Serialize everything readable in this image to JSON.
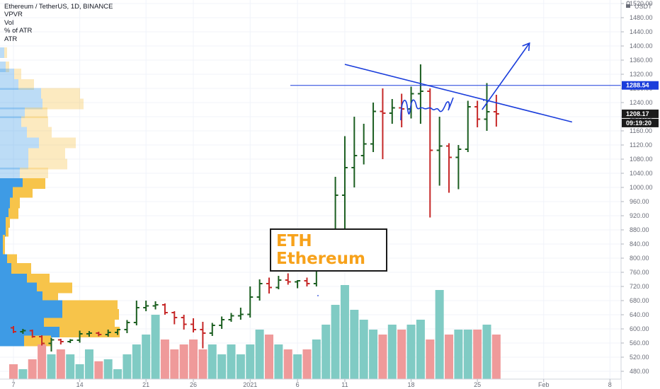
{
  "legend": {
    "title": "Ethereum / TetherUS, 1D, BINANCE",
    "indicators": [
      "VPVR",
      "Vol",
      "% of ATR",
      "ATR"
    ]
  },
  "annotation": {
    "line1": "ETH",
    "line2": "Ethereum",
    "color": "#f7a21b"
  },
  "price_tags": {
    "horizontal_level": "1288.54",
    "last_price": "1208.17",
    "countdown": "09:19:20"
  },
  "colors": {
    "up": "#1b5e20",
    "down": "#c62828",
    "vol_up": "#80cbc4",
    "vol_down": "#ef9a9a",
    "vp_blue": "#3e9be5",
    "vp_yellow": "#f7c44a",
    "drawing": "#1a3ddb"
  },
  "chart_data": {
    "type": "ohlc",
    "symbol": "Ethereum / TetherUS",
    "interval": "1D",
    "exchange": "BINANCE",
    "y_axis": {
      "unit": "USDT",
      "range": [
        460,
        1540
      ],
      "ticks": [
        480,
        520,
        560,
        600,
        640,
        680,
        720,
        760,
        800,
        840,
        880,
        920,
        960,
        1000,
        1040,
        1080,
        1120,
        1160,
        1200,
        1240,
        1280,
        1320,
        1360,
        1400,
        1440,
        1480,
        1520
      ]
    },
    "x_axis": {
      "tick_labels": [
        {
          "label": "7",
          "day": 0
        },
        {
          "label": "14",
          "day": 7
        },
        {
          "label": "21",
          "day": 14
        },
        {
          "label": "26",
          "day": 19
        },
        {
          "label": "2021",
          "day": 25
        },
        {
          "label": "6",
          "day": 30
        },
        {
          "label": "11",
          "day": 35
        },
        {
          "label": "18",
          "day": 42
        },
        {
          "label": "25",
          "day": 49
        },
        {
          "label": "Feb",
          "day": 56
        },
        {
          "label": "8",
          "day": 63
        }
      ]
    },
    "bars": [
      {
        "o": 603,
        "h": 608,
        "l": 588,
        "c": 592
      },
      {
        "o": 592,
        "h": 600,
        "l": 586,
        "c": 595
      },
      {
        "o": 595,
        "h": 598,
        "l": 575,
        "c": 578
      },
      {
        "o": 578,
        "h": 582,
        "l": 553,
        "c": 559
      },
      {
        "o": 559,
        "h": 575,
        "l": 536,
        "c": 569
      },
      {
        "o": 569,
        "h": 572,
        "l": 556,
        "c": 564
      },
      {
        "o": 564,
        "h": 571,
        "l": 560,
        "c": 568
      },
      {
        "o": 568,
        "h": 595,
        "l": 561,
        "c": 586
      },
      {
        "o": 586,
        "h": 594,
        "l": 578,
        "c": 588
      },
      {
        "o": 588,
        "h": 592,
        "l": 579,
        "c": 584
      },
      {
        "o": 584,
        "h": 598,
        "l": 578,
        "c": 590
      },
      {
        "o": 590,
        "h": 600,
        "l": 583,
        "c": 598
      },
      {
        "o": 598,
        "h": 625,
        "l": 588,
        "c": 618
      },
      {
        "o": 618,
        "h": 680,
        "l": 610,
        "c": 660
      },
      {
        "o": 660,
        "h": 680,
        "l": 650,
        "c": 665
      },
      {
        "o": 665,
        "h": 678,
        "l": 655,
        "c": 668
      },
      {
        "o": 668,
        "h": 672,
        "l": 640,
        "c": 646
      },
      {
        "o": 646,
        "h": 650,
        "l": 613,
        "c": 632
      },
      {
        "o": 632,
        "h": 640,
        "l": 598,
        "c": 613
      },
      {
        "o": 613,
        "h": 630,
        "l": 590,
        "c": 598
      },
      {
        "o": 598,
        "h": 620,
        "l": 545,
        "c": 588
      },
      {
        "o": 588,
        "h": 617,
        "l": 580,
        "c": 610
      },
      {
        "o": 610,
        "h": 635,
        "l": 600,
        "c": 626
      },
      {
        "o": 626,
        "h": 645,
        "l": 620,
        "c": 637
      },
      {
        "o": 637,
        "h": 660,
        "l": 626,
        "c": 641
      },
      {
        "o": 641,
        "h": 720,
        "l": 632,
        "c": 690
      },
      {
        "o": 690,
        "h": 740,
        "l": 680,
        "c": 728
      },
      {
        "o": 728,
        "h": 745,
        "l": 700,
        "c": 717
      },
      {
        "o": 717,
        "h": 750,
        "l": 712,
        "c": 738
      },
      {
        "o": 738,
        "h": 757,
        "l": 725,
        "c": 733
      },
      {
        "o": 733,
        "h": 738,
        "l": 715,
        "c": 736
      },
      {
        "o": 736,
        "h": 745,
        "l": 720,
        "c": 728
      },
      {
        "o": 728,
        "h": 775,
        "l": 720,
        "c": 768
      },
      {
        "o": 768,
        "h": 883,
        "l": 765,
        "c": 845
      },
      {
        "o": 845,
        "h": 1030,
        "l": 840,
        "c": 978
      },
      {
        "o": 978,
        "h": 1145,
        "l": 860,
        "c": 1056
      },
      {
        "o": 1056,
        "h": 1200,
        "l": 1000,
        "c": 1090
      },
      {
        "o": 1090,
        "h": 1180,
        "l": 1065,
        "c": 1123
      },
      {
        "o": 1123,
        "h": 1240,
        "l": 1100,
        "c": 1215
      },
      {
        "o": 1215,
        "h": 1280,
        "l": 1080,
        "c": 1210
      },
      {
        "o": 1210,
        "h": 1250,
        "l": 1180,
        "c": 1225
      },
      {
        "o": 1225,
        "h": 1265,
        "l": 1170,
        "c": 1222
      },
      {
        "o": 1222,
        "h": 1285,
        "l": 1195,
        "c": 1265
      },
      {
        "o": 1265,
        "h": 1348,
        "l": 1180,
        "c": 1272
      },
      {
        "o": 1272,
        "h": 1280,
        "l": 915,
        "c": 1105
      },
      {
        "o": 1105,
        "h": 1200,
        "l": 1005,
        "c": 1117
      },
      {
        "o": 1117,
        "h": 1125,
        "l": 985,
        "c": 1085
      },
      {
        "o": 1085,
        "h": 1120,
        "l": 995,
        "c": 1108
      },
      {
        "o": 1108,
        "h": 1245,
        "l": 1100,
        "c": 1228
      },
      {
        "o": 1228,
        "h": 1245,
        "l": 1170,
        "c": 1193
      },
      {
        "o": 1193,
        "h": 1295,
        "l": 1160,
        "c": 1214
      },
      {
        "o": 1214,
        "h": 1262,
        "l": 1172,
        "c": 1208
      }
    ],
    "volume": [
      0.15,
      0.1,
      0.2,
      0.35,
      0.25,
      0.3,
      0.25,
      0.15,
      0.3,
      0.18,
      0.2,
      0.1,
      0.25,
      0.35,
      0.45,
      0.65,
      0.4,
      0.3,
      0.35,
      0.4,
      0.3,
      0.35,
      0.25,
      0.35,
      0.25,
      0.35,
      0.5,
      0.45,
      0.35,
      0.3,
      0.25,
      0.3,
      0.4,
      0.55,
      0.75,
      0.95,
      0.7,
      0.6,
      0.5,
      0.45,
      0.55,
      0.5,
      0.55,
      0.6,
      0.4,
      0.9,
      0.45,
      0.5,
      0.5,
      0.5,
      0.55,
      0.45
    ],
    "volume_profile": [
      {
        "price": 1380,
        "up": 6,
        "down": 4
      },
      {
        "price": 1340,
        "up": 8,
        "down": 5
      },
      {
        "price": 1320,
        "up": 20,
        "down": 10
      },
      {
        "price": 1290,
        "up": 26,
        "down": 22
      },
      {
        "price": 1265,
        "up": 58,
        "down": 55
      },
      {
        "price": 1235,
        "up": 60,
        "down": 58
      },
      {
        "price": 1210,
        "up": 35,
        "down": 32
      },
      {
        "price": 1185,
        "up": 30,
        "down": 38
      },
      {
        "price": 1155,
        "up": 38,
        "down": 35
      },
      {
        "price": 1125,
        "up": 55,
        "down": 52
      },
      {
        "price": 1095,
        "up": 40,
        "down": 52
      },
      {
        "price": 1065,
        "up": 40,
        "down": 55
      },
      {
        "price": 1040,
        "up": 28,
        "down": 40
      },
      {
        "price": 1010,
        "up": 32,
        "down": 32
      },
      {
        "price": 985,
        "up": 18,
        "down": 28
      },
      {
        "price": 955,
        "up": 14,
        "down": 14
      },
      {
        "price": 925,
        "up": 12,
        "down": 14
      },
      {
        "price": 900,
        "up": 8,
        "down": 6
      },
      {
        "price": 875,
        "up": 8,
        "down": 4
      },
      {
        "price": 850,
        "up": 4,
        "down": 3
      },
      {
        "price": 820,
        "up": 4,
        "down": 3
      },
      {
        "price": 795,
        "up": 10,
        "down": 14
      },
      {
        "price": 770,
        "up": 16,
        "down": 28
      },
      {
        "price": 740,
        "up": 38,
        "down": 32
      },
      {
        "price": 715,
        "up": 52,
        "down": 50
      },
      {
        "price": 690,
        "up": 60,
        "down": 22
      },
      {
        "price": 665,
        "up": 88,
        "down": 78
      },
      {
        "price": 640,
        "up": 88,
        "down": 80
      },
      {
        "price": 615,
        "up": 62,
        "down": 100
      },
      {
        "price": 590,
        "up": 84,
        "down": 85
      },
      {
        "price": 565,
        "up": 34,
        "down": 38
      }
    ],
    "drawings": {
      "horizontal_line": 1288.54,
      "trendline": {
        "from": {
          "day": 35.0,
          "price": 1348
        },
        "to": {
          "day": 59.0,
          "price": 1185
        }
      },
      "arrow": {
        "from": {
          "day": 49.5,
          "price": 1220
        },
        "to": {
          "day": 54.5,
          "price": 1408
        }
      }
    }
  }
}
